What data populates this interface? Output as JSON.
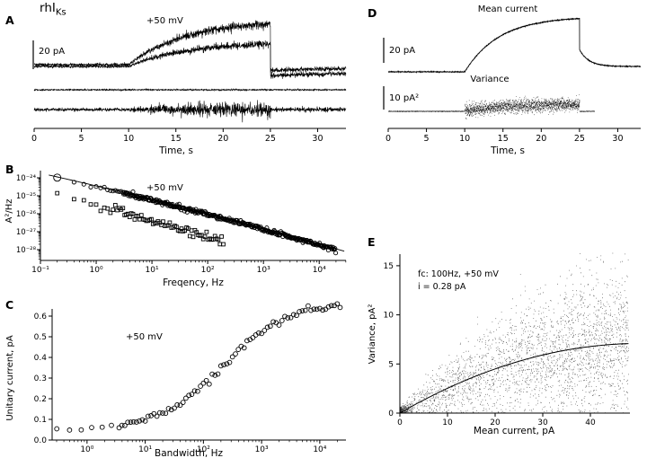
{
  "figure": {
    "title_main": "rhI",
    "title_sub": "Ks",
    "text_color": "#000000",
    "background": "#ffffff"
  },
  "chart_data": [
    {
      "id": "A",
      "panel_label": "A",
      "type": "line",
      "condition_label": "+50 mV",
      "scale_bar": {
        "label": "20 pA",
        "value_pA": 20
      },
      "xlabel": "Time, s",
      "x_ticks": [
        0,
        5,
        10,
        15,
        20,
        25,
        30
      ],
      "x_range_s": [
        0,
        33
      ],
      "pulse": {
        "on_s": 10,
        "off_s": 25
      },
      "traces": [
        {
          "name": "current-sweep-1",
          "kind": "noisy-rise",
          "plateau_pA": 31,
          "tau_s": 6,
          "tail_persist_pA": -2,
          "tail_amp_pA": -2,
          "tail_tau_s": 8,
          "noise_pA": {
            "rest": 0.5,
            "active": 1.8,
            "tail": 0.8
          },
          "seed": 11
        },
        {
          "name": "current-sweep-2",
          "kind": "noisy-rise",
          "plateau_pA": 17,
          "tau_s": 6,
          "tail_persist_pA": -4,
          "tail_amp_pA": -2.5,
          "tail_tau_s": 8,
          "noise_pA": {
            "rest": 0.5,
            "active": 1.4,
            "tail": 0.8
          },
          "seed": 22
        },
        {
          "name": "zero-current-line",
          "kind": "flat",
          "noise_pA": {
            "rest": 0.25,
            "active": 0.25,
            "tail": 0.25
          },
          "seed": 33
        },
        {
          "name": "difference-noise-trace",
          "kind": "noise-band",
          "ramp_tau_s": 4,
          "noise_pA": {
            "rest": 0.55,
            "active": 2.6,
            "tail": 0.8
          },
          "seed": 44
        }
      ]
    },
    {
      "id": "B",
      "panel_label": "B",
      "type": "scatter",
      "condition_label": "+50 mV",
      "xlabel": "Freqency, Hz",
      "ylabel": "A²/Hz",
      "x_tick_labels": [
        "10⁻¹",
        "10⁰",
        "10¹",
        "10²",
        "10³",
        "10⁴"
      ],
      "x_tick_exponents": [
        -1,
        0,
        1,
        2,
        3,
        4
      ],
      "y_tick_labels": [
        "10⁻²⁴",
        "10⁻²⁵",
        "10⁻²⁶",
        "10⁻²⁷",
        "10⁻²⁸"
      ],
      "y_tick_exponents": [
        -24,
        -25,
        -26,
        -27,
        -28
      ],
      "x_log_range": [
        -1,
        4.48
      ],
      "y_log_range": [
        -28.6,
        -23.7
      ],
      "series": [
        {
          "name": "current-noise-spectrum-circles",
          "marker": "circle",
          "log_model": {
            "a": -24,
            "b": -0.7,
            "c": -0.02,
            "u0": 0.7
          },
          "f_start_Hz": 0.2,
          "f_log_max": 4.3,
          "noise_decades": 0.06,
          "seed": 5
        },
        {
          "name": "background-noise-spectrum-squares",
          "marker": "square",
          "log_model": {
            "a": -25.0,
            "b": -0.8,
            "c": -0.02,
            "u0": 0.7
          },
          "f_start_Hz": 0.2,
          "f_log_max": 2.3,
          "noise_decades": 0.12,
          "seed": 6
        }
      ],
      "fit_curve": {
        "name": "spectrum-fit",
        "offset_decades": 0.05,
        "f_log_range": [
          -0.85,
          4.45
        ]
      }
    },
    {
      "id": "C",
      "panel_label": "C",
      "type": "scatter",
      "condition_label": "+50 mV",
      "xlabel": "Bandwidth, Hz",
      "ylabel": "Unitary current, pA",
      "x_tick_labels": [
        "10⁰",
        "10¹",
        "10²",
        "10³",
        "10⁴"
      ],
      "x_tick_exponents": [
        0,
        1,
        2,
        3,
        4
      ],
      "y_ticks": [
        0,
        0.1,
        0.2,
        0.3,
        0.4,
        0.5,
        0.6
      ],
      "y_tick_labels": [
        "0.0",
        "0.1",
        "0.2",
        "0.3",
        "0.4",
        "0.5",
        "0.6"
      ],
      "x_log_range": [
        -0.6,
        4.45
      ],
      "y_range_pA": [
        0,
        0.65
      ],
      "series": [
        {
          "name": "unitary-current-vs-bandwidth",
          "marker": "circle",
          "sigmoid_model": {
            "base_pA": 0.05,
            "amp_pA": 0.62,
            "mid_log": 2.35,
            "width_log": 0.55
          },
          "low_f_logs": [
            -0.52,
            -0.3,
            -0.1,
            0.08,
            0.26,
            0.42
          ],
          "f_log_range": [
            0.55,
            4.35
          ],
          "noise_pA": 0.008,
          "seed": 7
        }
      ]
    },
    {
      "id": "D",
      "panel_label": "D",
      "type": "line",
      "trace_labels": {
        "mean": "Mean current",
        "variance": "Variance"
      },
      "scale_bars": [
        {
          "label": "20 pA",
          "value": 20
        },
        {
          "label": "10 pA²",
          "value": 10
        }
      ],
      "xlabel": "Time, s",
      "x_ticks": [
        0,
        5,
        10,
        15,
        20,
        25,
        30
      ],
      "x_range_s": [
        0,
        33
      ],
      "pulse": {
        "on_s": 10,
        "off_s": 25
      },
      "traces": [
        {
          "name": "mean-current-trace",
          "kind": "smooth-rise",
          "plateau_pA": 44,
          "tau_s": 4.5,
          "tail_persist_pA": 4.3,
          "tail_amp_pA": 13.5,
          "tail_tau_s": 1.2,
          "noise_pA": 0.15,
          "seed": 55
        },
        {
          "name": "variance-trace",
          "kind": "variance-band",
          "rise_pA2": 3,
          "rise_tau_s": 5,
          "noise_pA2": 1.3,
          "baseline_noise_pA2": 0.06,
          "end_s": 27,
          "seed": 66
        }
      ]
    },
    {
      "id": "E",
      "panel_label": "E",
      "type": "scatter",
      "annotation_line1": "fc: 100Hz, +50 mV",
      "annotation_line2": "i = 0.28 pA",
      "xlabel": "Mean current, pA",
      "ylabel": "Variance, pA²",
      "x_ticks": [
        0,
        10,
        20,
        30,
        40
      ],
      "y_ticks": [
        0,
        5,
        10,
        15
      ],
      "x_range_pA": [
        0,
        48
      ],
      "y_range_pA2": [
        0,
        16
      ],
      "fit_curve": {
        "name": "parabolic-fit",
        "unitary_current_pA": 0.28,
        "channels_N": 362
      },
      "scatter": {
        "name": "variance-vs-mean-cloud",
        "n_points": 2600,
        "origin_cluster_points": 200,
        "spread_base_pA2": 0.4,
        "spread_factor": 0.45,
        "seed": 99
      }
    }
  ]
}
